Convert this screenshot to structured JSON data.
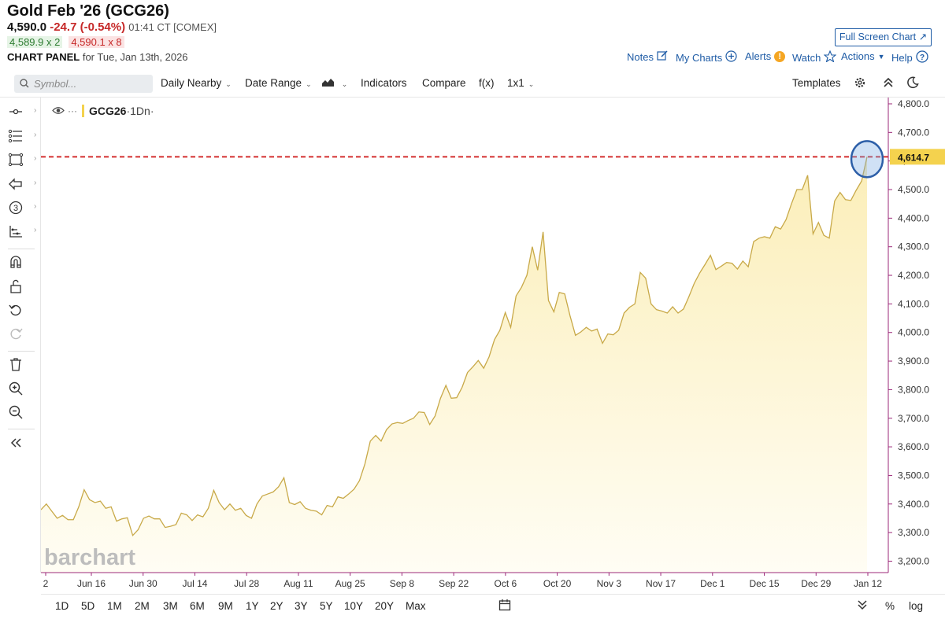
{
  "header": {
    "title": "Gold Feb '26 (GCG26)",
    "last": "4,590.0",
    "change": "-24.7 (-0.54%)",
    "time": "01:41 CT [COMEX]",
    "bid": "4,589.9 x 2",
    "ask": "4,590.1 x 8",
    "panel_label": "CHART PANEL",
    "panel_date": "for Tue, Jan 13th, 2026",
    "fullscreen": "Full Screen Chart ↗",
    "links": {
      "notes": "Notes",
      "mycharts": "My Charts",
      "alerts": "Alerts",
      "watch": "Watch",
      "actions": "Actions",
      "help": "Help"
    }
  },
  "toolbar": {
    "symbol_placeholder": "Symbol...",
    "daily_nearby": "Daily Nearby",
    "date_range": "Date Range",
    "indicators": "Indicators",
    "compare": "Compare",
    "fx": "f(x)",
    "layout": "1x1",
    "templates": "Templates"
  },
  "legend": {
    "symbol": "GCG26",
    "period": "·1Dn·",
    "dots": "···"
  },
  "watermark": "barchart",
  "bottom": {
    "ranges": [
      "1D",
      "5D",
      "1M",
      "2M",
      "3M",
      "6M",
      "9M",
      "1Y",
      "2Y",
      "3Y",
      "5Y",
      "10Y",
      "20Y",
      "Max"
    ],
    "percent": "%",
    "log": "log"
  },
  "colors": {
    "line": "#c8a948",
    "fill_top": "#fbeeb8",
    "fill_bottom": "#fffdf4",
    "ref_line": "#d32f2f",
    "price_tag": "#f4d24e",
    "circle": "#2d5fa8",
    "axis": "#9c2a7a",
    "link": "#1f5ca6"
  },
  "chart_data": {
    "type": "area",
    "series": [
      {
        "values": [
          3380,
          3400,
          3375,
          3350,
          3360,
          3345,
          3345,
          3390,
          3450,
          3415,
          3405,
          3410,
          3385,
          3390,
          3340,
          3348,
          3352,
          3290,
          3310,
          3350,
          3358,
          3348,
          3348,
          3318,
          3322,
          3328,
          3368,
          3362,
          3342,
          3362,
          3355,
          3385,
          3448,
          3405,
          3380,
          3400,
          3378,
          3385,
          3360,
          3350,
          3400,
          3428,
          3435,
          3442,
          3460,
          3492,
          3405,
          3398,
          3408,
          3385,
          3378,
          3375,
          3362,
          3395,
          3390,
          3425,
          3420,
          3435,
          3452,
          3482,
          3540,
          3620,
          3640,
          3620,
          3660,
          3680,
          3685,
          3682,
          3692,
          3700,
          3722,
          3720,
          3678,
          3708,
          3770,
          3815,
          3770,
          3772,
          3808,
          3860,
          3880,
          3902,
          3875,
          3915,
          3975,
          4008,
          4070,
          4018,
          4128,
          4158,
          4200,
          4300,
          4218,
          4352,
          4112,
          4072,
          4140,
          4135,
          4058,
          3990,
          4002,
          4018,
          4005,
          4012,
          3962,
          3995,
          3992,
          4008,
          4068,
          4088,
          4100,
          4210,
          4190,
          4100,
          4080,
          4075,
          4068,
          4090,
          4068,
          4082,
          4125,
          4172,
          4208,
          4238,
          4270,
          4220,
          4232,
          4245,
          4242,
          4222,
          4250,
          4230,
          4318,
          4330,
          4335,
          4330,
          4370,
          4362,
          4395,
          4450,
          4500,
          4500,
          4550,
          4345,
          4385,
          4340,
          4330,
          4460,
          4490,
          4465,
          4462,
          4498,
          4530,
          4614.7
        ]
      }
    ],
    "x_ticks": [
      "2",
      "Jun 16",
      "Jun 30",
      "Jul 14",
      "Jul 28",
      "Aug 11",
      "Aug 25",
      "Sep 8",
      "Sep 22",
      "Oct 6",
      "Oct 20",
      "Nov 3",
      "Nov 17",
      "Dec 1",
      "Dec 15",
      "Dec 29",
      "Jan 12"
    ],
    "y_ticks": [
      "4,800.0",
      "4,700.0",
      "4,600.0",
      "4,500.0",
      "4,400.0",
      "4,300.0",
      "4,200.0",
      "4,100.0",
      "4,000.0",
      "3,900.0",
      "3,800.0",
      "3,700.0",
      "3,600.0",
      "3,500.0",
      "3,400.0",
      "3,300.0",
      "3,200.0"
    ],
    "ylim": [
      3160,
      4822
    ],
    "reference_line": 4614.7,
    "reference_label": "4,614.7",
    "y_axis_side": "right",
    "grid": false
  }
}
